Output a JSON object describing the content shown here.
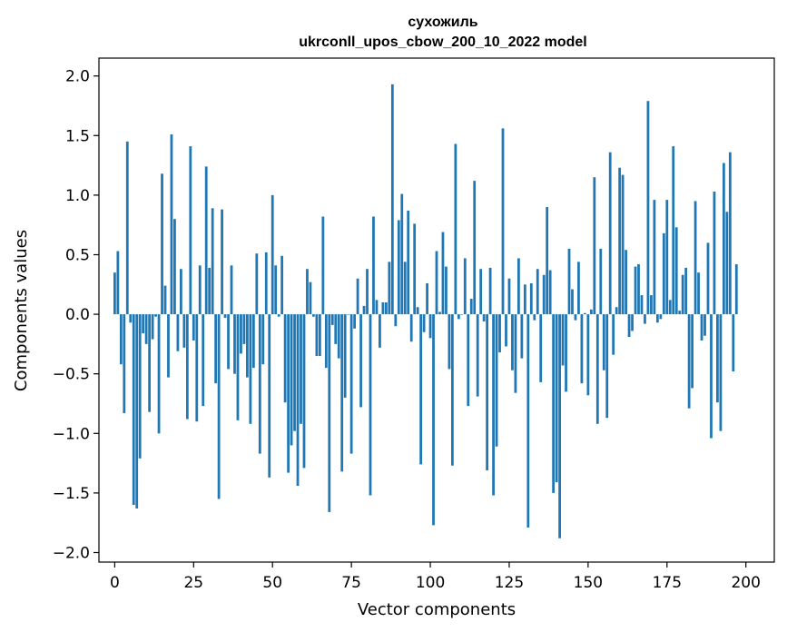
{
  "chart_data": {
    "type": "bar",
    "title": "сухожиль",
    "subtitle": "ukrconll_upos_cbow_200_10_2022 model",
    "xlabel": "Vector components",
    "ylabel": "Components values",
    "xlim": [
      -5,
      209
    ],
    "ylim": [
      -2.08,
      2.15
    ],
    "xticks": [
      0,
      25,
      50,
      75,
      100,
      125,
      150,
      175,
      200
    ],
    "xtick_labels": [
      "0",
      "25",
      "50",
      "75",
      "100",
      "125",
      "150",
      "175",
      "200"
    ],
    "yticks": [
      2.0,
      1.5,
      1.0,
      0.5,
      0.0,
      -0.5,
      -1.0,
      -1.5,
      -2.0
    ],
    "ytick_labels": [
      "2.0",
      "1.5",
      "1.0",
      "0.5",
      "0.0",
      "−0.5",
      "−1.0",
      "−1.5",
      "−2.0"
    ],
    "color": "#1f77b4",
    "values": [
      0.35,
      0.53,
      -0.42,
      -0.83,
      1.45,
      -0.07,
      -1.6,
      -1.63,
      -1.21,
      -0.16,
      -0.25,
      -0.82,
      -0.21,
      -0.02,
      -1.0,
      1.18,
      0.24,
      -0.53,
      1.51,
      0.8,
      -0.31,
      0.38,
      -0.28,
      -0.88,
      1.41,
      -0.22,
      -0.9,
      0.41,
      -0.77,
      1.24,
      0.39,
      0.89,
      -0.58,
      -1.55,
      0.88,
      -0.03,
      -0.46,
      0.41,
      -0.5,
      -0.89,
      -0.33,
      -0.25,
      -0.53,
      -0.92,
      -0.45,
      0.51,
      -1.17,
      -0.42,
      0.52,
      -1.37,
      1.0,
      0.41,
      -0.02,
      0.49,
      -0.74,
      -1.33,
      -1.1,
      -0.98,
      -1.44,
      -0.92,
      -1.29,
      0.38,
      0.27,
      -0.02,
      -0.35,
      -0.35,
      0.82,
      -0.45,
      -1.66,
      -0.09,
      -0.25,
      -0.37,
      -1.32,
      -0.7,
      0.0,
      -1.17,
      -0.12,
      0.3,
      -0.78,
      0.07,
      0.38,
      -1.52,
      0.82,
      0.12,
      -0.28,
      0.1,
      0.1,
      0.44,
      1.93,
      -0.1,
      0.79,
      1.01,
      0.44,
      0.87,
      -0.23,
      0.76,
      0.06,
      -1.26,
      -0.15,
      0.26,
      -0.2,
      -1.77,
      0.53,
      0.02,
      0.69,
      0.4,
      -0.46,
      -1.27,
      1.43,
      -0.04,
      0.0,
      0.47,
      -0.77,
      0.13,
      1.12,
      -0.69,
      0.38,
      -0.06,
      -1.31,
      0.39,
      -1.52,
      -1.11,
      -0.32,
      1.56,
      -0.27,
      0.3,
      -0.47,
      -0.66,
      0.47,
      -0.37,
      0.25,
      -1.79,
      0.26,
      -0.05,
      0.38,
      -0.57,
      0.33,
      0.9,
      0.37,
      -1.5,
      -1.41,
      -1.88,
      -0.43,
      -0.65,
      0.55,
      0.21,
      -0.05,
      0.44,
      -0.58,
      0.01,
      -0.68,
      0.04,
      1.15,
      -0.92,
      0.55,
      -0.47,
      -0.87,
      1.36,
      -0.34,
      0.06,
      1.23,
      1.17,
      0.54,
      -0.19,
      -0.14,
      0.4,
      0.42,
      0.16,
      -0.08,
      1.79,
      0.16,
      0.96,
      -0.07,
      -0.04,
      0.68,
      0.96,
      0.12,
      1.41,
      0.73,
      0.03,
      0.33,
      0.39,
      -0.79,
      -0.62,
      0.95,
      0.35,
      -0.22,
      -0.18,
      0.6,
      -1.04,
      1.03,
      -0.74,
      -0.98,
      1.27,
      0.86,
      1.36,
      -0.48,
      0.42
    ]
  }
}
